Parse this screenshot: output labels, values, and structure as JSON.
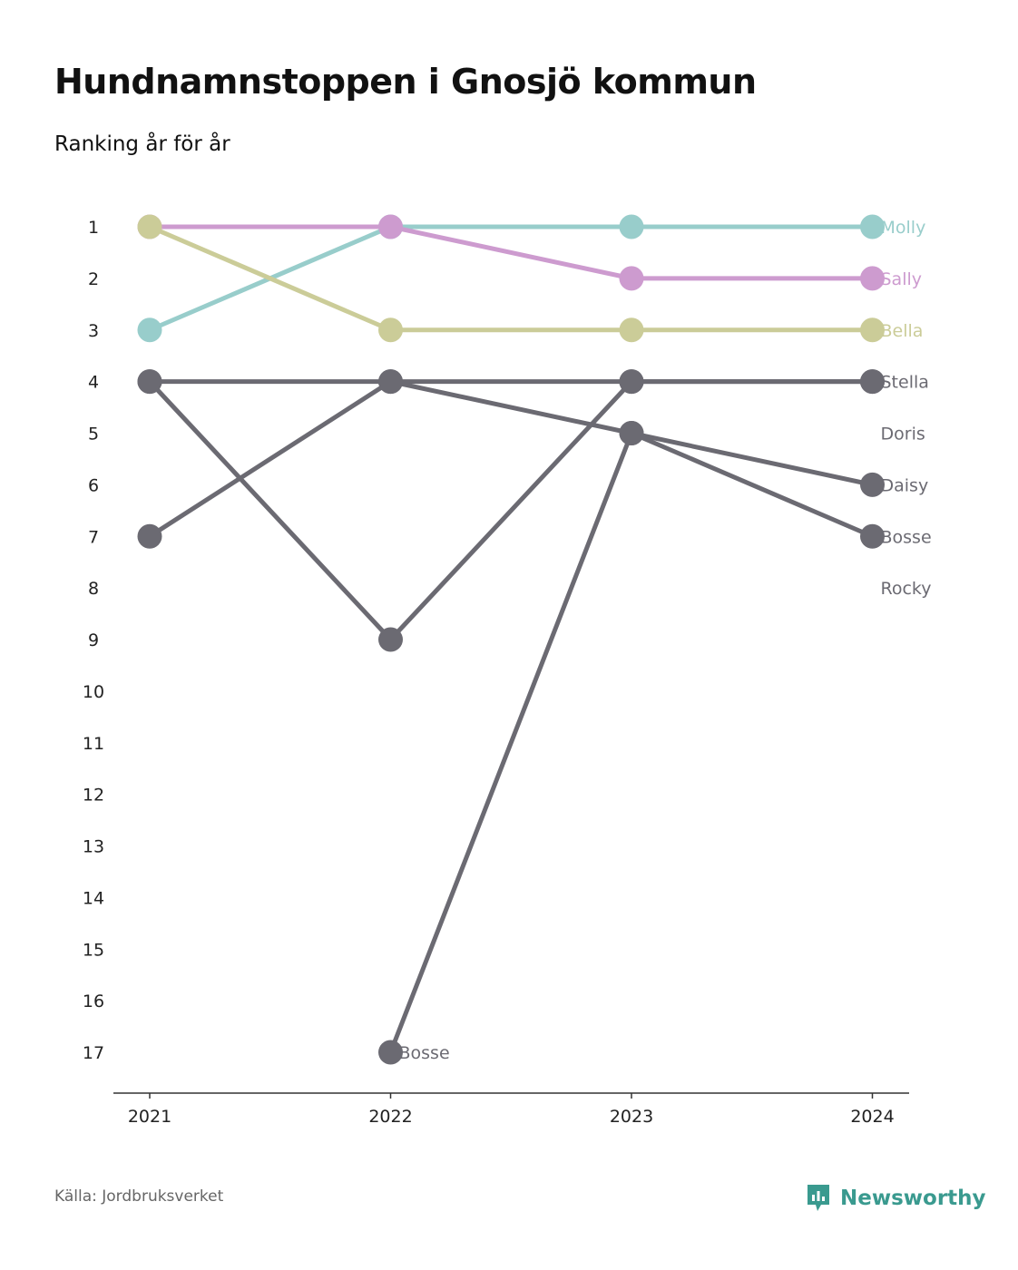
{
  "header": {
    "title": "Hundnamnstoppen i Gnosjö kommun",
    "subtitle": "Ranking år för år"
  },
  "footer": {
    "source": "Källa: Jordbruksverket",
    "brand": "Newsworthy",
    "brand_icon": "newsworthy-logo-icon"
  },
  "colors": {
    "teal": "#98cdcb",
    "pink": "#cd9bcf",
    "olive": "#cbcc98",
    "gray": "#6b6a72",
    "brand": "#3a9a8f",
    "axis": "#333333"
  },
  "chart_data": {
    "type": "line",
    "subtype": "bump",
    "x": [
      "2021",
      "2022",
      "2023",
      "2024"
    ],
    "y_ticks": [
      "1",
      "2",
      "3",
      "4",
      "5",
      "6",
      "7",
      "8",
      "9",
      "10",
      "11",
      "12",
      "13",
      "14",
      "15",
      "16",
      "17"
    ],
    "ylim": [
      1,
      17
    ],
    "y_inverted": true,
    "grid": false,
    "series": [
      {
        "name": "Molly",
        "color": "#98cdcb",
        "values": [
          3,
          1,
          1,
          1
        ],
        "label_at_end": true
      },
      {
        "name": "Sally",
        "color": "#cd9bcf",
        "values": [
          1,
          1,
          2,
          2
        ],
        "label_at_end": true
      },
      {
        "name": "Bella",
        "color": "#cbcc98",
        "values": [
          1,
          3,
          3,
          3
        ],
        "label_at_end": true
      },
      {
        "name": "Stella",
        "color": "#6b6a72",
        "values": [
          7,
          4,
          4,
          4
        ],
        "label_at_end": true
      },
      {
        "name": "Doris",
        "color": "#6b6a72",
        "values": [
          4,
          9,
          4,
          4
        ],
        "label_at_end": true
      },
      {
        "name": "Daisy",
        "color": "#6b6a72",
        "values": [
          4,
          4,
          5,
          6
        ],
        "label_at_end": true
      },
      {
        "name": "Bosse",
        "color": "#6b6a72",
        "values": [
          null,
          17,
          5,
          7
        ],
        "label_at_end": true
      },
      {
        "name": "Rocky",
        "color": "#6b6a72",
        "values": [
          null,
          null,
          null,
          null
        ],
        "label_at_end": true
      }
    ],
    "annotations": [
      {
        "text": "Bosse",
        "x": "2022",
        "y": 17
      }
    ],
    "end_labels": [
      "Molly",
      "Sally",
      "Bella",
      "Stella",
      "Doris",
      "Daisy",
      "Bosse",
      "Rocky"
    ]
  }
}
